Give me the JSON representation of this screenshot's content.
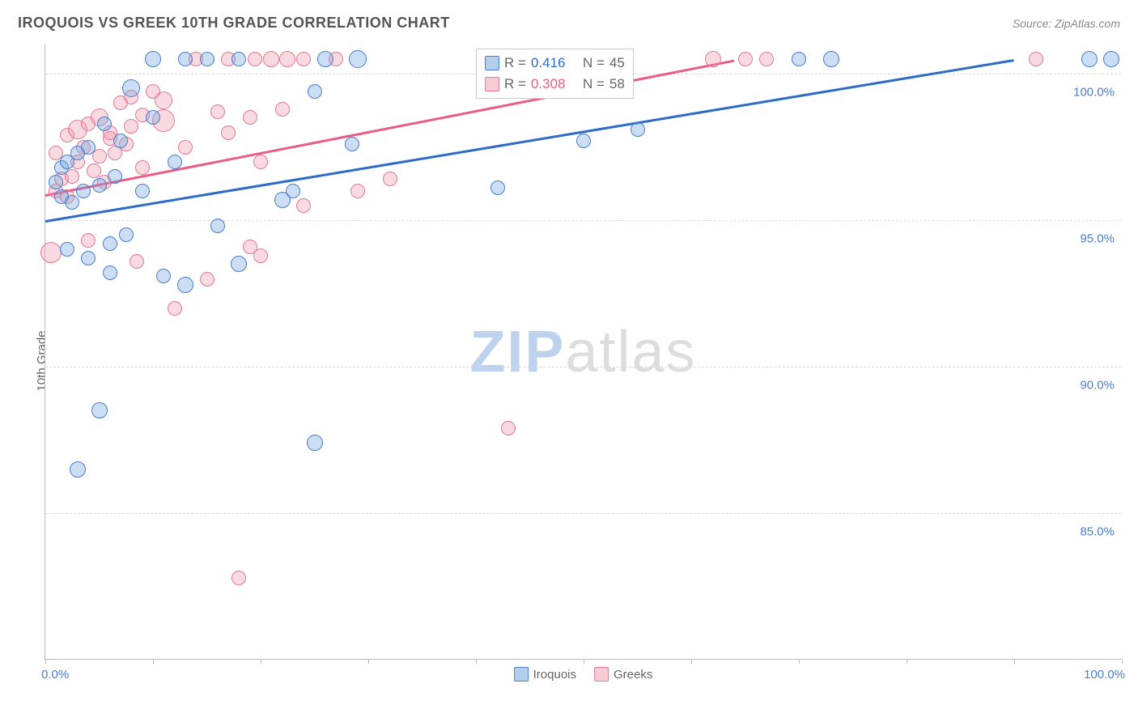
{
  "title": "IROQUOIS VS GREEK 10TH GRADE CORRELATION CHART",
  "source_prefix": "Source: ",
  "source_name": "ZipAtlas.com",
  "y_axis_label": "10th Grade",
  "watermark": {
    "zip": "ZIP",
    "atlas": "atlas"
  },
  "chart": {
    "type": "scatter",
    "background_color": "#ffffff",
    "grid_color": "#d8d8d8",
    "axis_color": "#bbbbbb",
    "xlim": [
      0,
      100
    ],
    "ylim": [
      80,
      101
    ],
    "y_ticks": [
      85.0,
      90.0,
      95.0,
      100.0
    ],
    "y_tick_labels": [
      "85.0%",
      "90.0%",
      "95.0%",
      "100.0%"
    ],
    "x_ticks": [
      0,
      10,
      20,
      30,
      40,
      50,
      60,
      70,
      80,
      90,
      100
    ],
    "x_min_label": "0.0%",
    "x_max_label": "100.0%",
    "series": {
      "blue": {
        "label": "Iroquois",
        "fill": "rgba(106,160,220,0.35)",
        "stroke": "#4a7ec9",
        "trend_color": "#2e6bc7",
        "R": "0.416",
        "N": "45",
        "trend": {
          "x1": 0,
          "y1": 95.0,
          "x2": 90,
          "y2": 100.5
        },
        "points": [
          {
            "x": 1,
            "y": 96.3,
            "r": 9
          },
          {
            "x": 1.5,
            "y": 96.8,
            "r": 9
          },
          {
            "x": 1.5,
            "y": 95.8,
            "r": 9
          },
          {
            "x": 2,
            "y": 94.0,
            "r": 9
          },
          {
            "x": 2,
            "y": 97.0,
            "r": 9
          },
          {
            "x": 2.5,
            "y": 95.6,
            "r": 9
          },
          {
            "x": 3,
            "y": 86.5,
            "r": 10
          },
          {
            "x": 3,
            "y": 97.3,
            "r": 9
          },
          {
            "x": 3.5,
            "y": 96.0,
            "r": 9
          },
          {
            "x": 4,
            "y": 93.7,
            "r": 9
          },
          {
            "x": 4,
            "y": 97.5,
            "r": 9
          },
          {
            "x": 5,
            "y": 88.5,
            "r": 10
          },
          {
            "x": 5,
            "y": 96.2,
            "r": 9
          },
          {
            "x": 5.5,
            "y": 98.3,
            "r": 9
          },
          {
            "x": 6,
            "y": 93.2,
            "r": 9
          },
          {
            "x": 6,
            "y": 94.2,
            "r": 9
          },
          {
            "x": 6.5,
            "y": 96.5,
            "r": 9
          },
          {
            "x": 7,
            "y": 97.7,
            "r": 9
          },
          {
            "x": 7.5,
            "y": 94.5,
            "r": 9
          },
          {
            "x": 8,
            "y": 99.5,
            "r": 11
          },
          {
            "x": 9,
            "y": 96.0,
            "r": 9
          },
          {
            "x": 10,
            "y": 100.5,
            "r": 10
          },
          {
            "x": 10,
            "y": 98.5,
            "r": 9
          },
          {
            "x": 11,
            "y": 93.1,
            "r": 9
          },
          {
            "x": 12,
            "y": 97.0,
            "r": 9
          },
          {
            "x": 13,
            "y": 92.8,
            "r": 10
          },
          {
            "x": 13,
            "y": 100.5,
            "r": 9
          },
          {
            "x": 15,
            "y": 100.5,
            "r": 9
          },
          {
            "x": 16,
            "y": 94.8,
            "r": 9
          },
          {
            "x": 18,
            "y": 93.5,
            "r": 10
          },
          {
            "x": 18,
            "y": 100.5,
            "r": 9
          },
          {
            "x": 22,
            "y": 95.7,
            "r": 10
          },
          {
            "x": 23,
            "y": 96.0,
            "r": 9
          },
          {
            "x": 25,
            "y": 87.4,
            "r": 10
          },
          {
            "x": 25,
            "y": 99.4,
            "r": 9
          },
          {
            "x": 26,
            "y": 100.5,
            "r": 10
          },
          {
            "x": 28.5,
            "y": 97.6,
            "r": 9
          },
          {
            "x": 29,
            "y": 100.5,
            "r": 11
          },
          {
            "x": 42,
            "y": 96.1,
            "r": 9
          },
          {
            "x": 50,
            "y": 97.7,
            "r": 9
          },
          {
            "x": 55,
            "y": 98.1,
            "r": 9
          },
          {
            "x": 70,
            "y": 100.5,
            "r": 9
          },
          {
            "x": 73,
            "y": 100.5,
            "r": 10
          },
          {
            "x": 97,
            "y": 100.5,
            "r": 10
          },
          {
            "x": 99,
            "y": 100.5,
            "r": 10
          }
        ]
      },
      "pink": {
        "label": "Greeks",
        "fill": "rgba(240,150,170,0.35)",
        "stroke": "#e07a95",
        "trend_color": "#e85d85",
        "R": "0.308",
        "N": "58",
        "trend": {
          "x1": 0,
          "y1": 95.9,
          "x2": 64,
          "y2": 100.5
        },
        "points": [
          {
            "x": 0.5,
            "y": 93.9,
            "r": 13
          },
          {
            "x": 1,
            "y": 96.0,
            "r": 9
          },
          {
            "x": 1,
            "y": 97.3,
            "r": 9
          },
          {
            "x": 1.5,
            "y": 96.4,
            "r": 9
          },
          {
            "x": 2,
            "y": 95.8,
            "r": 9
          },
          {
            "x": 2,
            "y": 97.9,
            "r": 9
          },
          {
            "x": 2.5,
            "y": 96.5,
            "r": 9
          },
          {
            "x": 3,
            "y": 97.0,
            "r": 9
          },
          {
            "x": 3,
            "y": 98.1,
            "r": 12
          },
          {
            "x": 3.5,
            "y": 97.5,
            "r": 9
          },
          {
            "x": 4,
            "y": 94.3,
            "r": 9
          },
          {
            "x": 4,
            "y": 98.3,
            "r": 9
          },
          {
            "x": 4.5,
            "y": 96.7,
            "r": 9
          },
          {
            "x": 5,
            "y": 97.2,
            "r": 9
          },
          {
            "x": 5,
            "y": 98.5,
            "r": 11
          },
          {
            "x": 5.5,
            "y": 96.3,
            "r": 9
          },
          {
            "x": 6,
            "y": 97.8,
            "r": 9
          },
          {
            "x": 6,
            "y": 98.0,
            "r": 9
          },
          {
            "x": 6.5,
            "y": 97.3,
            "r": 9
          },
          {
            "x": 7,
            "y": 99.0,
            "r": 9
          },
          {
            "x": 7.5,
            "y": 97.6,
            "r": 9
          },
          {
            "x": 8,
            "y": 98.2,
            "r": 9
          },
          {
            "x": 8,
            "y": 99.2,
            "r": 9
          },
          {
            "x": 8.5,
            "y": 93.6,
            "r": 9
          },
          {
            "x": 9,
            "y": 96.8,
            "r": 9
          },
          {
            "x": 9,
            "y": 98.6,
            "r": 9
          },
          {
            "x": 10,
            "y": 99.4,
            "r": 9
          },
          {
            "x": 11,
            "y": 98.4,
            "r": 14
          },
          {
            "x": 11,
            "y": 99.1,
            "r": 11
          },
          {
            "x": 12,
            "y": 92.0,
            "r": 9
          },
          {
            "x": 13,
            "y": 97.5,
            "r": 9
          },
          {
            "x": 14,
            "y": 100.5,
            "r": 9
          },
          {
            "x": 15,
            "y": 93.0,
            "r": 9
          },
          {
            "x": 16,
            "y": 98.7,
            "r": 9
          },
          {
            "x": 17,
            "y": 98.0,
            "r": 9
          },
          {
            "x": 17,
            "y": 100.5,
            "r": 9
          },
          {
            "x": 18,
            "y": 82.8,
            "r": 9
          },
          {
            "x": 19,
            "y": 94.1,
            "r": 9
          },
          {
            "x": 19,
            "y": 98.5,
            "r": 9
          },
          {
            "x": 19.5,
            "y": 100.5,
            "r": 9
          },
          {
            "x": 20,
            "y": 93.8,
            "r": 9
          },
          {
            "x": 20,
            "y": 97.0,
            "r": 9
          },
          {
            "x": 21,
            "y": 100.5,
            "r": 10
          },
          {
            "x": 22,
            "y": 98.8,
            "r": 9
          },
          {
            "x": 22.5,
            "y": 100.5,
            "r": 10
          },
          {
            "x": 24,
            "y": 95.5,
            "r": 9
          },
          {
            "x": 24,
            "y": 100.5,
            "r": 9
          },
          {
            "x": 27,
            "y": 100.5,
            "r": 9
          },
          {
            "x": 29,
            "y": 96.0,
            "r": 9
          },
          {
            "x": 32,
            "y": 96.4,
            "r": 9
          },
          {
            "x": 43,
            "y": 100.5,
            "r": 9
          },
          {
            "x": 43,
            "y": 87.9,
            "r": 9
          },
          {
            "x": 50,
            "y": 100.5,
            "r": 9
          },
          {
            "x": 53,
            "y": 100.5,
            "r": 11
          },
          {
            "x": 62,
            "y": 100.5,
            "r": 10
          },
          {
            "x": 65,
            "y": 100.5,
            "r": 9
          },
          {
            "x": 67,
            "y": 100.5,
            "r": 9
          },
          {
            "x": 92,
            "y": 100.5,
            "r": 9
          }
        ]
      }
    }
  },
  "corr_legend": {
    "R_label": "R =",
    "N_label": "N ="
  },
  "label_fontsize": 15,
  "title_fontsize": 18
}
